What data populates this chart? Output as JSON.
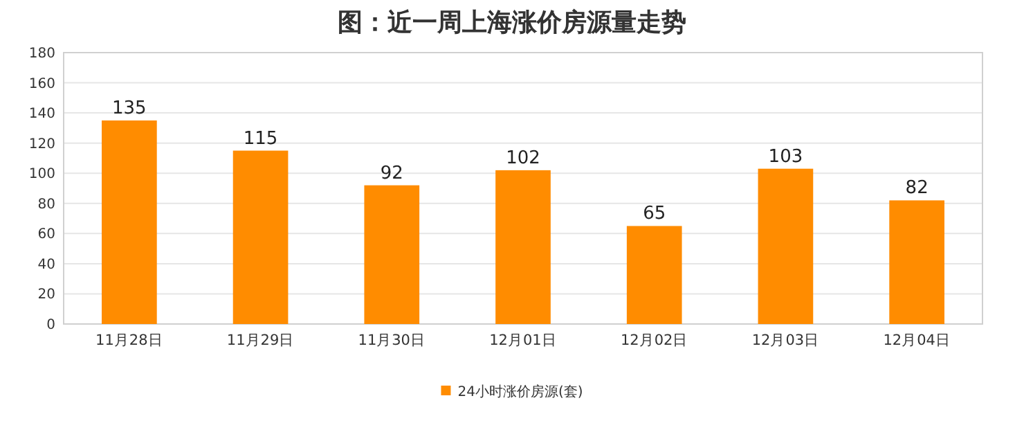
{
  "chart_data": {
    "type": "bar",
    "title": "图：近一周上海涨价房源量走势",
    "categories": [
      "11月28日",
      "11月29日",
      "11月30日",
      "12月01日",
      "12月02日",
      "12月03日",
      "12月04日"
    ],
    "series": [
      {
        "name": "24小时涨价房源(套)",
        "color": "#ff8c00",
        "values": [
          135,
          115,
          92,
          102,
          65,
          103,
          82
        ]
      }
    ],
    "ylim": [
      0,
      180
    ],
    "yticks": [
      0,
      20,
      40,
      60,
      80,
      100,
      120,
      140,
      160,
      180
    ],
    "grid": "y",
    "legend": "bottom",
    "data_labels": true
  }
}
